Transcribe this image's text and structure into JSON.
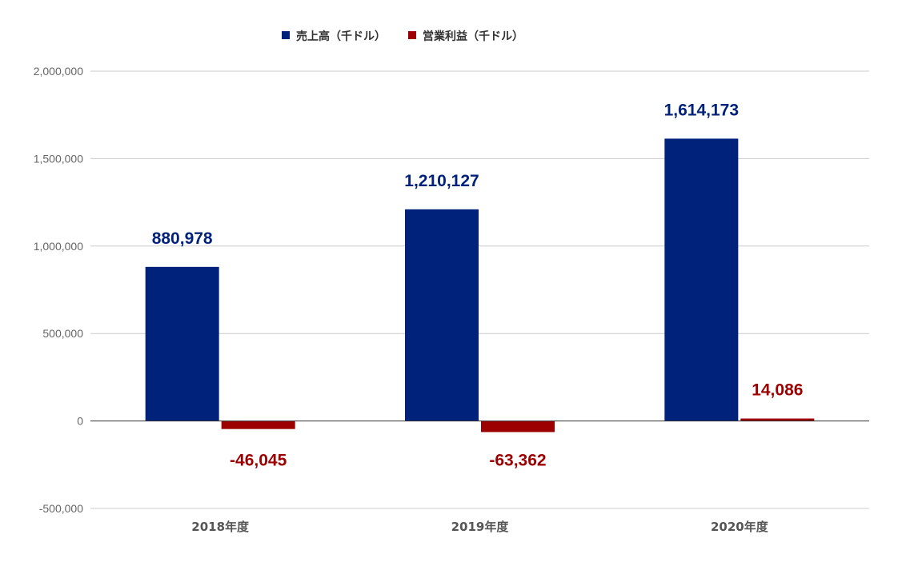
{
  "chart_data": {
    "type": "bar",
    "title": "",
    "xlabel": "",
    "ylabel": "",
    "categories": [
      "2018年度",
      "2019年度",
      "2020年度"
    ],
    "series": [
      {
        "name": "売上高（千ドル）",
        "color": "#00227b",
        "values": [
          880978,
          1210127,
          1614173
        ],
        "labels": [
          "880,978",
          "1,210,127",
          "1,614,173"
        ]
      },
      {
        "name": "営業利益（千ドル）",
        "color": "#9c0000",
        "values": [
          -46045,
          -63362,
          14086
        ],
        "labels": [
          "-46,045",
          "-63,362",
          "14,086"
        ]
      }
    ],
    "ylim": [
      -500000,
      2000000
    ],
    "yticks": [
      -500000,
      0,
      500000,
      1000000,
      1500000,
      2000000
    ],
    "ytick_labels": [
      "-500,000",
      "0",
      "500,000",
      "1,000,000",
      "1,500,000",
      "2,000,000"
    ],
    "grid": true,
    "legend_position": "top"
  }
}
